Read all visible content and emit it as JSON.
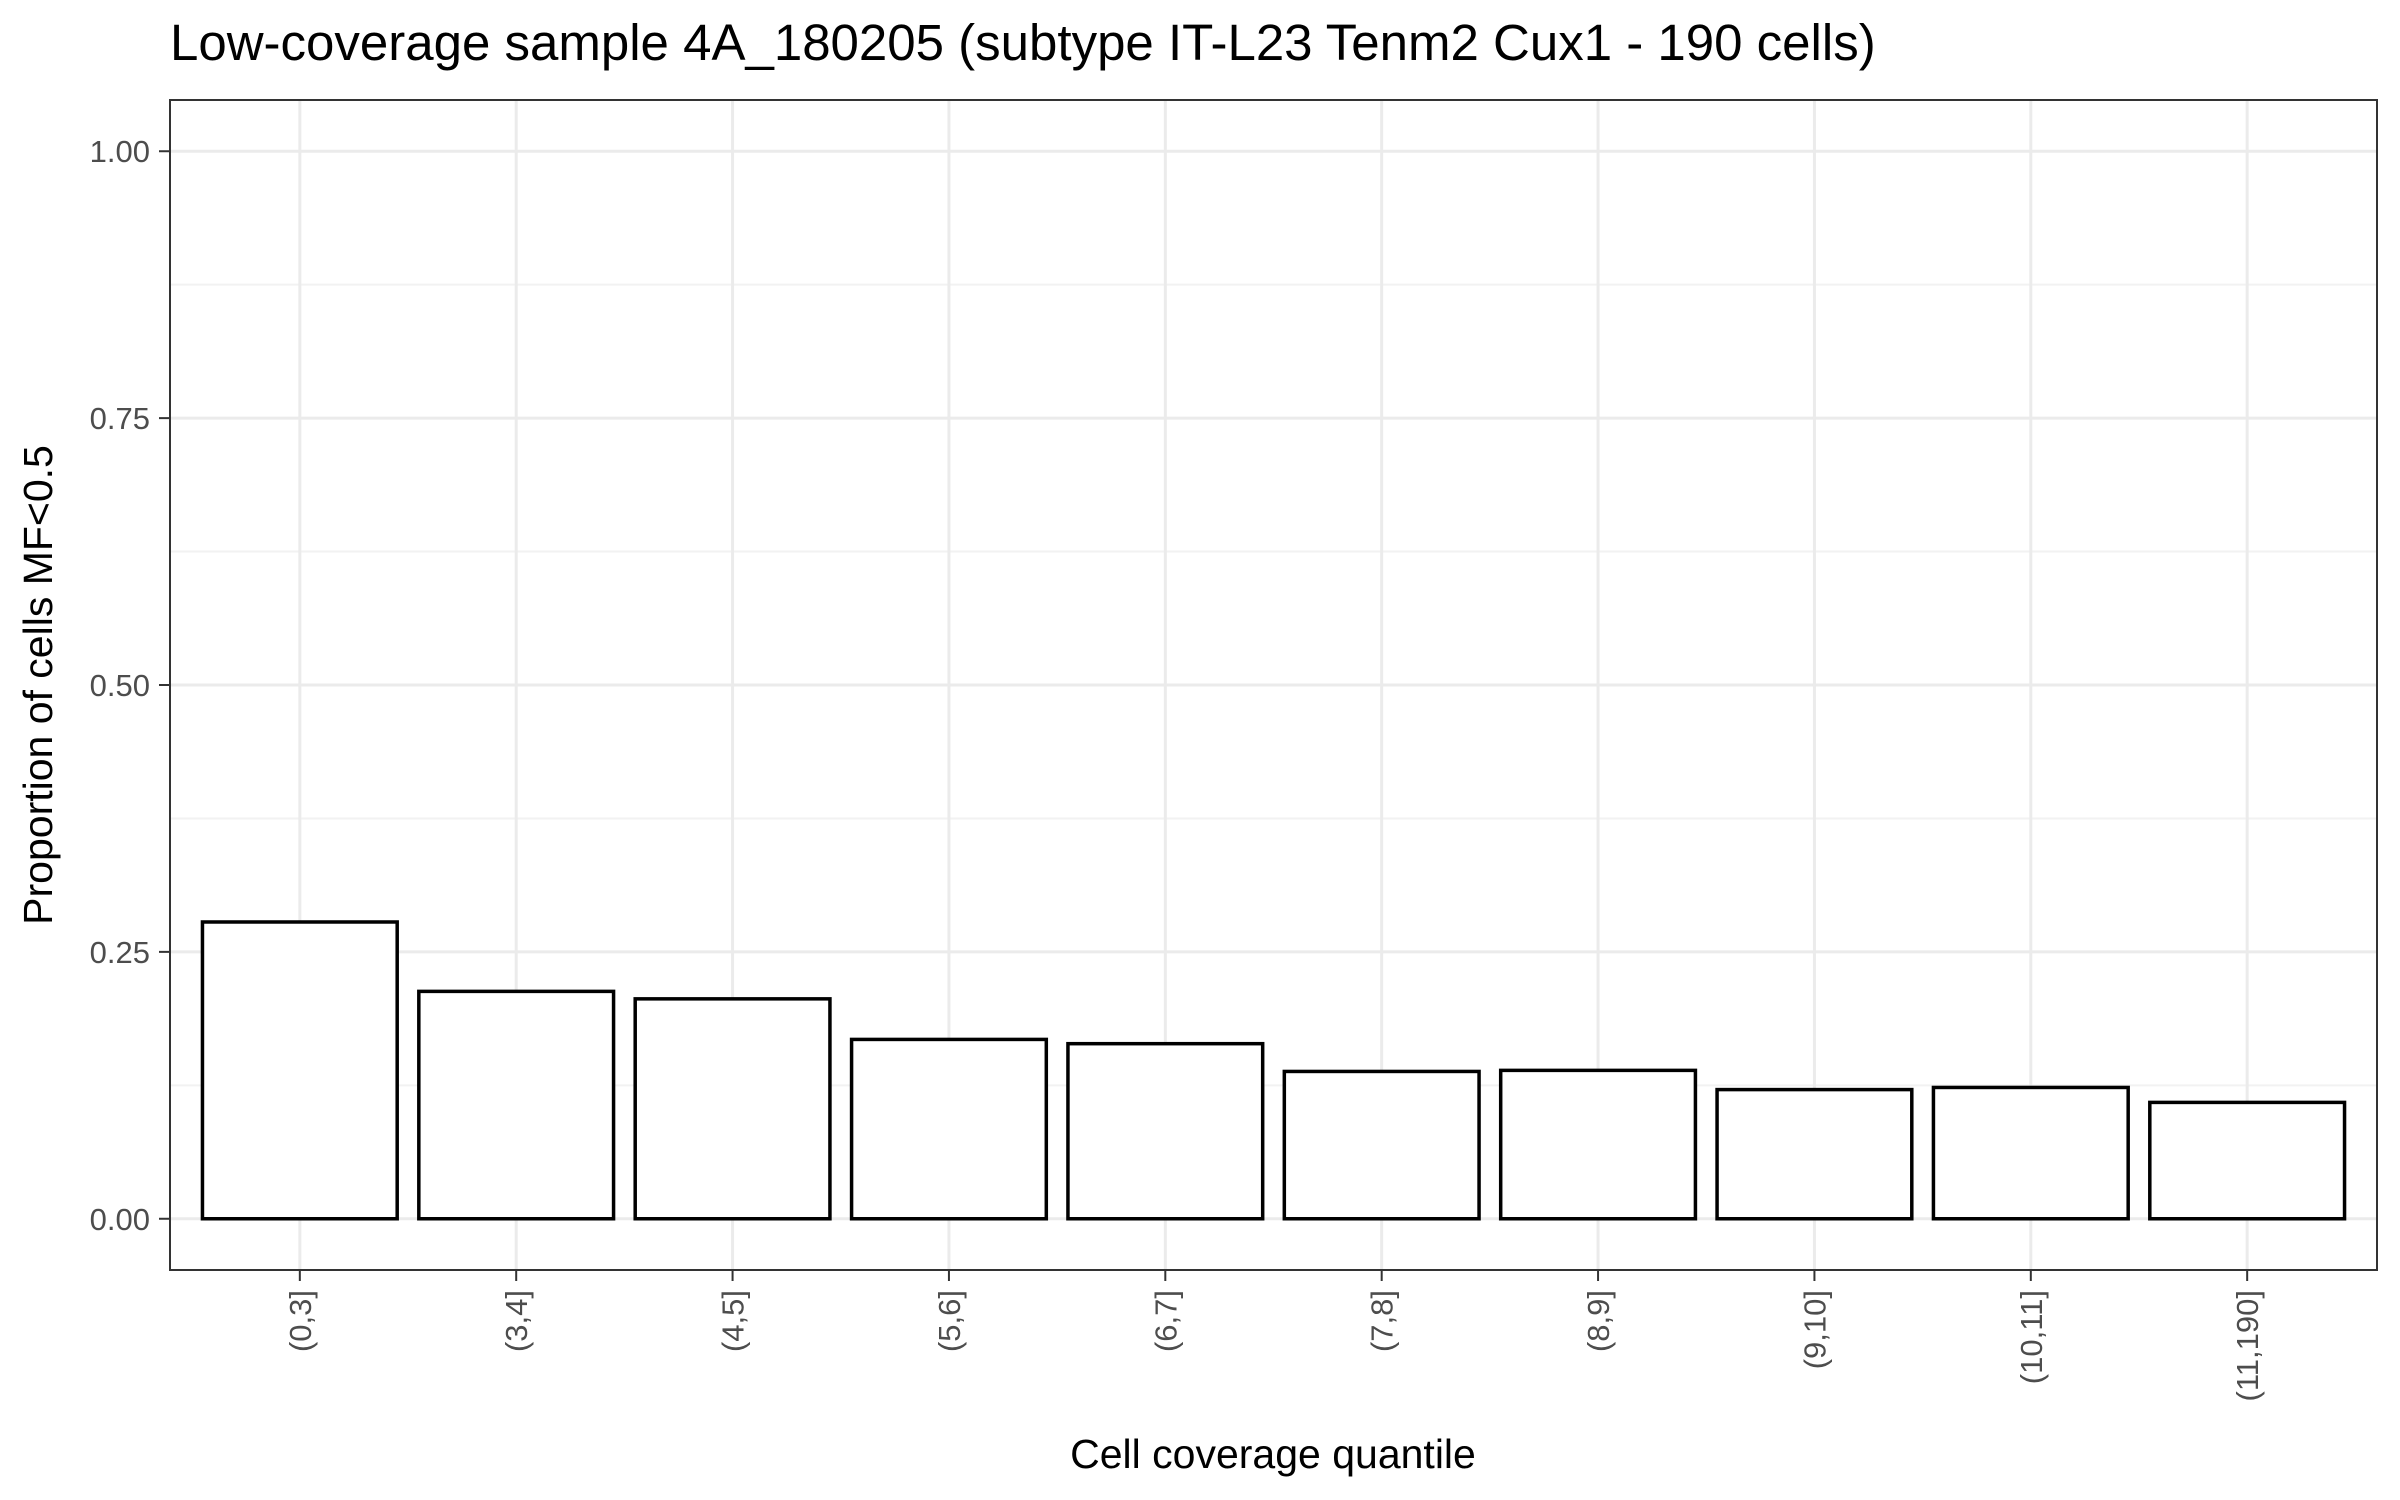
{
  "chart_data": {
    "type": "bar",
    "title": "Low-coverage sample 4A_180205 (subtype IT-L23 Tenm2 Cux1 - 190 cells)",
    "xlabel": "Cell coverage quantile",
    "ylabel": "Proportion of cells MF<0.5",
    "categories": [
      "(0,3]",
      "(3,4]",
      "(4,5]",
      "(5,6]",
      "(6,7]",
      "(7,8]",
      "(8,9]",
      "(9,10]",
      "(10,11]",
      "(11,190]"
    ],
    "values": [
      0.278,
      0.213,
      0.206,
      0.168,
      0.164,
      0.138,
      0.139,
      0.121,
      0.123,
      0.109
    ],
    "ylim": [
      -0.048,
      1.048
    ],
    "yticks": [
      0.0,
      0.25,
      0.5,
      0.75,
      1.0
    ],
    "ytick_labels": [
      "0.00",
      "0.25",
      "0.50",
      "0.75",
      "1.00"
    ],
    "grid": true,
    "legend": "none",
    "bar_fill": "#ffffff",
    "bar_outline": "#000000",
    "panel_border": "#333333",
    "grid_major_color": "#ebebeb",
    "grid_minor_color": "#f2f2f2"
  }
}
